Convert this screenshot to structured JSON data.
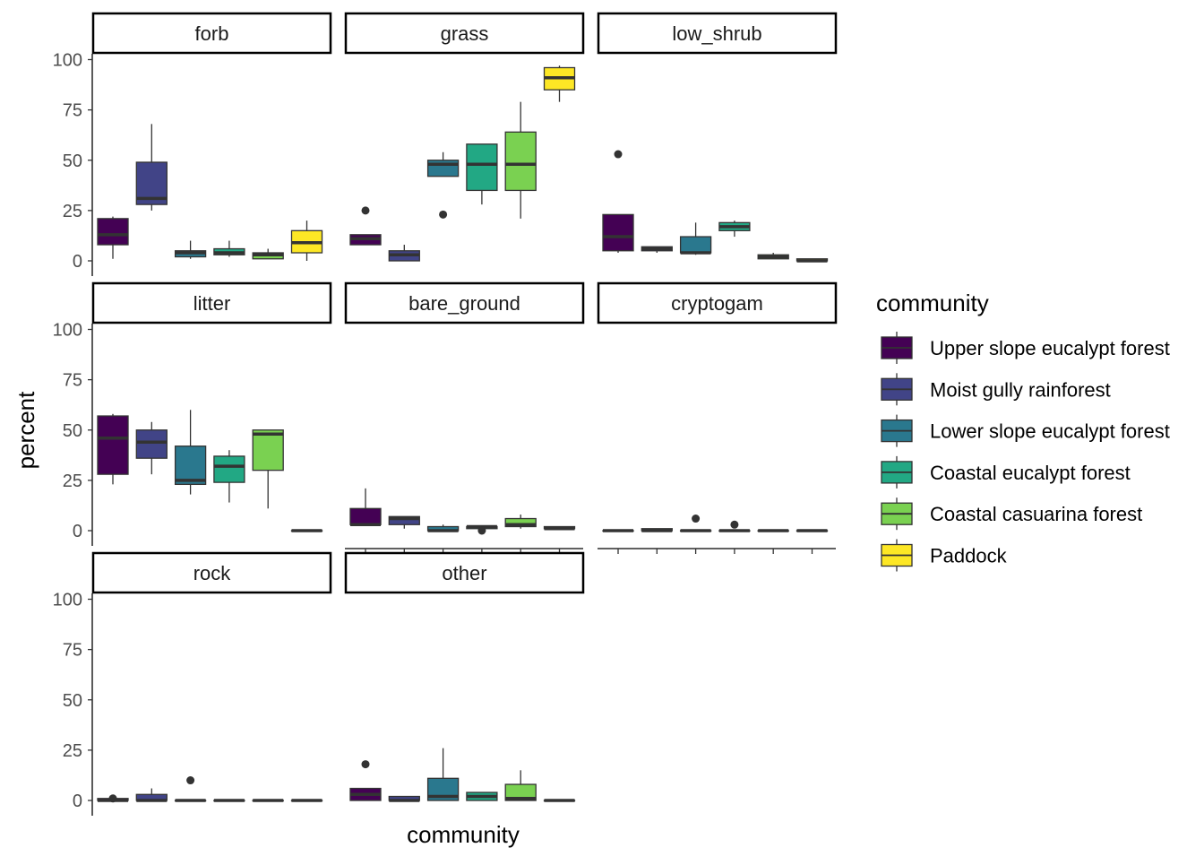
{
  "chart_data": {
    "type": "boxplot",
    "xlabel": "community",
    "ylabel": "percent",
    "ylim": [
      0,
      100
    ],
    "y_ticks": [
      0,
      25,
      50,
      75,
      100
    ],
    "y_tick_labels": [
      "0",
      "25",
      "50",
      "75",
      "100"
    ],
    "grid": false,
    "legend_position": "right",
    "legend_title": "community",
    "series": [
      {
        "name": "Upper slope eucalypt forest",
        "color": "#440154"
      },
      {
        "name": "Moist gully rainforest",
        "color": "#414487"
      },
      {
        "name": "Lower slope eucalypt forest",
        "color": "#2A788E"
      },
      {
        "name": "Coastal eucalypt forest",
        "color": "#22A884"
      },
      {
        "name": "Coastal casuarina forest",
        "color": "#7AD151"
      },
      {
        "name": "Paddock",
        "color": "#FDE725"
      }
    ],
    "facets": [
      {
        "label": "forb",
        "boxes": [
          {
            "q1": 8,
            "median": 13,
            "q3": 21,
            "min": 1,
            "max": 22,
            "outliers": []
          },
          {
            "q1": 28,
            "median": 31,
            "q3": 49,
            "min": 25,
            "max": 68,
            "outliers": []
          },
          {
            "q1": 2,
            "median": 4,
            "q3": 5,
            "min": 1,
            "max": 10,
            "outliers": []
          },
          {
            "q1": 3,
            "median": 4,
            "q3": 6,
            "min": 2,
            "max": 10,
            "outliers": []
          },
          {
            "q1": 1,
            "median": 3,
            "q3": 4,
            "min": 1,
            "max": 6,
            "outliers": []
          },
          {
            "q1": 4,
            "median": 9,
            "q3": 15,
            "min": 0,
            "max": 20,
            "outliers": []
          }
        ]
      },
      {
        "label": "grass",
        "boxes": [
          {
            "q1": 8,
            "median": 11,
            "q3": 13,
            "min": 8,
            "max": 13,
            "outliers": [
              25
            ]
          },
          {
            "q1": 0,
            "median": 3,
            "q3": 5,
            "min": 0,
            "max": 8,
            "outliers": []
          },
          {
            "q1": 42,
            "median": 48,
            "q3": 50,
            "min": 42,
            "max": 54,
            "outliers": [
              23
            ]
          },
          {
            "q1": 35,
            "median": 48,
            "q3": 58,
            "min": 28,
            "max": 58,
            "outliers": []
          },
          {
            "q1": 35,
            "median": 48,
            "q3": 64,
            "min": 21,
            "max": 79,
            "outliers": []
          },
          {
            "q1": 85,
            "median": 91,
            "q3": 96,
            "min": 79,
            "max": 97,
            "outliers": []
          }
        ]
      },
      {
        "label": "low_shrub",
        "boxes": [
          {
            "q1": 5,
            "median": 12,
            "q3": 23,
            "min": 4,
            "max": 23,
            "outliers": [
              53
            ]
          },
          {
            "q1": 5,
            "median": 6,
            "q3": 7,
            "min": 4,
            "max": 7,
            "outliers": []
          },
          {
            "q1": 4,
            "median": 4,
            "q3": 12,
            "min": 3,
            "max": 19,
            "outliers": []
          },
          {
            "q1": 15,
            "median": 17,
            "q3": 19,
            "min": 12,
            "max": 20,
            "outliers": []
          },
          {
            "q1": 1,
            "median": 2,
            "q3": 3,
            "min": 1,
            "max": 4,
            "outliers": []
          },
          {
            "q1": 0,
            "median": 0,
            "q3": 1,
            "min": 0,
            "max": 1,
            "outliers": []
          }
        ]
      },
      {
        "label": "litter",
        "boxes": [
          {
            "q1": 28,
            "median": 46,
            "q3": 57,
            "min": 23,
            "max": 58,
            "outliers": []
          },
          {
            "q1": 36,
            "median": 44,
            "q3": 50,
            "min": 28,
            "max": 54,
            "outliers": []
          },
          {
            "q1": 23,
            "median": 25,
            "q3": 42,
            "min": 18,
            "max": 60,
            "outliers": []
          },
          {
            "q1": 24,
            "median": 32,
            "q3": 37,
            "min": 14,
            "max": 40,
            "outliers": []
          },
          {
            "q1": 30,
            "median": 48,
            "q3": 50,
            "min": 11,
            "max": 50,
            "outliers": []
          },
          {
            "q1": 0,
            "median": 0,
            "q3": 0,
            "min": 0,
            "max": 0,
            "outliers": []
          }
        ]
      },
      {
        "label": "bare_ground",
        "boxes": [
          {
            "q1": 3,
            "median": 3,
            "q3": 11,
            "min": 3,
            "max": 21,
            "outliers": []
          },
          {
            "q1": 3,
            "median": 6,
            "q3": 7,
            "min": 1,
            "max": 7,
            "outliers": []
          },
          {
            "q1": 0,
            "median": 0,
            "q3": 2,
            "min": 0,
            "max": 3,
            "outliers": []
          },
          {
            "q1": 1,
            "median": 2,
            "q3": 2,
            "min": 1,
            "max": 2,
            "outliers": [
              0
            ]
          },
          {
            "q1": 2,
            "median": 3,
            "q3": 6,
            "min": 1,
            "max": 8,
            "outliers": []
          },
          {
            "q1": 1,
            "median": 1,
            "q3": 2,
            "min": 1,
            "max": 2,
            "outliers": []
          }
        ]
      },
      {
        "label": "cryptogam",
        "boxes": [
          {
            "q1": 0,
            "median": 0,
            "q3": 0,
            "min": 0,
            "max": 0,
            "outliers": []
          },
          {
            "q1": 0,
            "median": 0,
            "q3": 1,
            "min": 0,
            "max": 1,
            "outliers": []
          },
          {
            "q1": 0,
            "median": 0,
            "q3": 0,
            "min": 0,
            "max": 0,
            "outliers": [
              6
            ]
          },
          {
            "q1": 0,
            "median": 0,
            "q3": 0,
            "min": 0,
            "max": 0,
            "outliers": [
              3
            ]
          },
          {
            "q1": 0,
            "median": 0,
            "q3": 0,
            "min": 0,
            "max": 0,
            "outliers": []
          },
          {
            "q1": 0,
            "median": 0,
            "q3": 0,
            "min": 0,
            "max": 0,
            "outliers": []
          }
        ]
      },
      {
        "label": "rock",
        "boxes": [
          {
            "q1": 0,
            "median": 0,
            "q3": 1,
            "min": 0,
            "max": 1,
            "outliers": [
              1
            ]
          },
          {
            "q1": 0,
            "median": 0,
            "q3": 3,
            "min": 0,
            "max": 6,
            "outliers": []
          },
          {
            "q1": 0,
            "median": 0,
            "q3": 0,
            "min": 0,
            "max": 0,
            "outliers": [
              10
            ]
          },
          {
            "q1": 0,
            "median": 0,
            "q3": 0,
            "min": 0,
            "max": 0,
            "outliers": []
          },
          {
            "q1": 0,
            "median": 0,
            "q3": 0,
            "min": 0,
            "max": 0,
            "outliers": []
          },
          {
            "q1": 0,
            "median": 0,
            "q3": 0,
            "min": 0,
            "max": 0,
            "outliers": []
          }
        ]
      },
      {
        "label": "other",
        "boxes": [
          {
            "q1": 0,
            "median": 3,
            "q3": 6,
            "min": 0,
            "max": 6,
            "outliers": [
              18
            ]
          },
          {
            "q1": 0,
            "median": 0,
            "q3": 2,
            "min": 0,
            "max": 2,
            "outliers": []
          },
          {
            "q1": 0,
            "median": 2,
            "q3": 11,
            "min": 0,
            "max": 26,
            "outliers": []
          },
          {
            "q1": 0,
            "median": 2,
            "q3": 4,
            "min": 0,
            "max": 4,
            "outliers": []
          },
          {
            "q1": 0,
            "median": 1,
            "q3": 8,
            "min": 0,
            "max": 15,
            "outliers": []
          },
          {
            "q1": 0,
            "median": 0,
            "q3": 0,
            "min": 0,
            "max": 0,
            "outliers": []
          }
        ]
      }
    ]
  }
}
